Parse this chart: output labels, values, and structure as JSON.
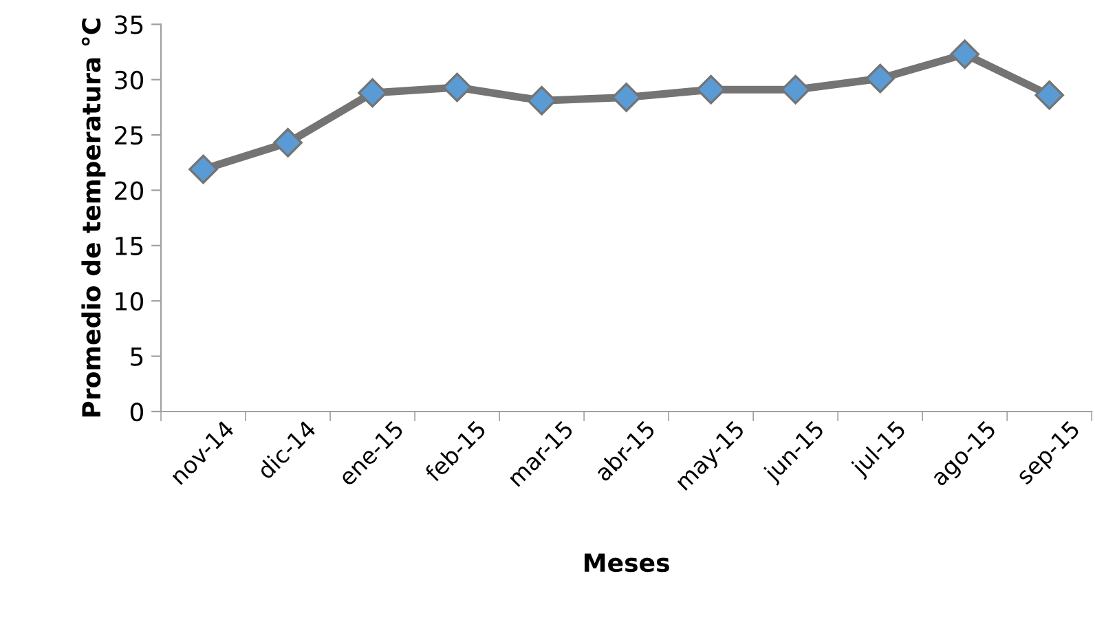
{
  "chart_data": {
    "type": "line",
    "xlabel": "Meses",
    "ylabel": "Promedio de temperatura °C",
    "categories": [
      "nov-14",
      "dic-14",
      "ene-15",
      "feb-15",
      "mar-15",
      "abr-15",
      "may-15",
      "jun-15",
      "jul-15",
      "ago-15",
      "sep-15"
    ],
    "series": [
      {
        "color": "#747474",
        "values": [
          21.9,
          24.3,
          28.8,
          29.3,
          28.1,
          28.4,
          29.1,
          29.1,
          30.1,
          32.3,
          28.6
        ]
      }
    ],
    "marker": "diamond",
    "line_style": "solid",
    "ylim": [
      0,
      35
    ],
    "yticks": [
      0,
      5,
      10,
      15,
      20,
      25,
      30,
      35
    ],
    "grid": false,
    "legend": false
  }
}
